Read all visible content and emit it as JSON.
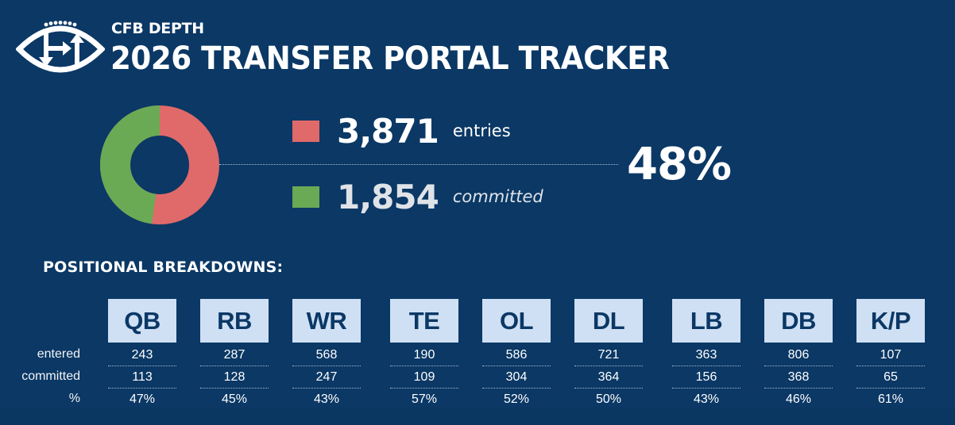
{
  "header": {
    "brand": "CFB DEPTH",
    "title": "2026 TRANSFER PORTAL TRACKER",
    "logo_icon": "football-transfer-arrows-logo"
  },
  "summary": {
    "entries": {
      "value": "3,871",
      "label": "entries",
      "color": "#e06a6a"
    },
    "committed": {
      "value": "1,854",
      "label": "committed",
      "color": "#6aaa55"
    },
    "percent_committed": "48%"
  },
  "chart_data": {
    "type": "pie",
    "title": "",
    "categories": [
      "entries (uncommitted)",
      "committed"
    ],
    "values": [
      2017,
      1854
    ],
    "totals": {
      "entries": 3871,
      "committed": 1854,
      "percent": 48
    },
    "colors": [
      "#e06a6a",
      "#6aaa55"
    ],
    "donut": true
  },
  "positional": {
    "title": "POSITIONAL BREAKDOWNS:",
    "row_labels": [
      "entered",
      "committed",
      "%"
    ],
    "positions": [
      {
        "name": "QB",
        "entered": "243",
        "committed": "113",
        "pct": "47%"
      },
      {
        "name": "RB",
        "entered": "287",
        "committed": "128",
        "pct": "45%"
      },
      {
        "name": "WR",
        "entered": "568",
        "committed": "247",
        "pct": "43%"
      },
      {
        "name": "TE",
        "entered": "190",
        "committed": "109",
        "pct": "57%"
      },
      {
        "name": "OL",
        "entered": "586",
        "committed": "304",
        "pct": "52%"
      },
      {
        "name": "DL",
        "entered": "721",
        "committed": "364",
        "pct": "50%"
      },
      {
        "name": "LB",
        "entered": "363",
        "committed": "156",
        "pct": "43%"
      },
      {
        "name": "DB",
        "entered": "806",
        "committed": "368",
        "pct": "46%"
      },
      {
        "name": "K/P",
        "entered": "107",
        "committed": "65",
        "pct": "61%"
      }
    ]
  }
}
